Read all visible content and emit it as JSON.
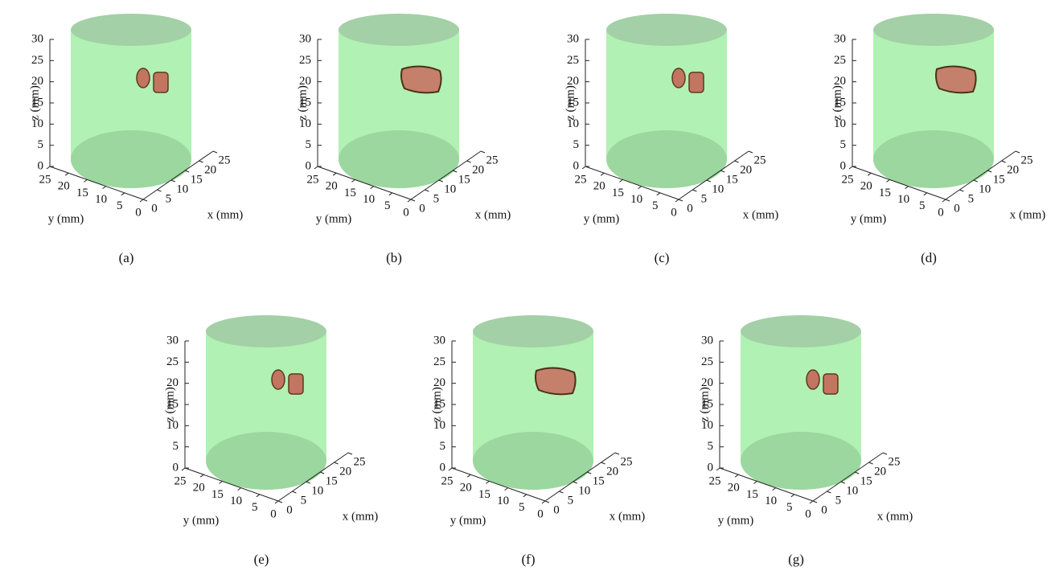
{
  "chart_data": [
    {
      "type": "surface3d",
      "caption": "(a)",
      "xlabel": "x (mm)",
      "ylabel": "y (mm)",
      "zlabel": "z (mm)",
      "xlim": [
        0,
        25
      ],
      "ylim": [
        0,
        25
      ],
      "zlim": [
        0,
        30
      ],
      "xticks": [
        0,
        5,
        10,
        15,
        20,
        25
      ],
      "yticks": [
        0,
        5,
        10,
        15,
        20,
        25
      ],
      "zticks": [
        0,
        5,
        10,
        15,
        20,
        25,
        30
      ]
    },
    {
      "type": "surface3d",
      "caption": "(b)",
      "xlabel": "x (mm)",
      "ylabel": "y (mm)",
      "zlabel": "z (mm)",
      "xlim": [
        0,
        25
      ],
      "ylim": [
        0,
        25
      ],
      "zlim": [
        0,
        30
      ],
      "xticks": [
        0,
        5,
        10,
        15,
        20,
        25
      ],
      "yticks": [
        0,
        5,
        10,
        15,
        20,
        25
      ],
      "zticks": [
        0,
        5,
        10,
        15,
        20,
        25,
        30
      ]
    },
    {
      "type": "surface3d",
      "caption": "(c)",
      "xlabel": "x (mm)",
      "ylabel": "y (mm)",
      "zlabel": "z (mm)",
      "xlim": [
        0,
        25
      ],
      "ylim": [
        0,
        25
      ],
      "zlim": [
        0,
        30
      ],
      "xticks": [
        0,
        5,
        10,
        15,
        20,
        25
      ],
      "yticks": [
        0,
        5,
        10,
        15,
        20,
        25
      ],
      "zticks": [
        0,
        5,
        10,
        15,
        20,
        25,
        30
      ]
    },
    {
      "type": "surface3d",
      "caption": "(d)",
      "xlabel": "x (mm)",
      "ylabel": "y (mm)",
      "zlabel": "z (mm)",
      "xlim": [
        0,
        25
      ],
      "ylim": [
        0,
        25
      ],
      "zlim": [
        0,
        30
      ],
      "xticks": [
        0,
        5,
        10,
        15,
        20,
        25
      ],
      "yticks": [
        0,
        5,
        10,
        15,
        20,
        25
      ],
      "zticks": [
        0,
        5,
        10,
        15,
        20,
        25,
        30
      ]
    },
    {
      "type": "surface3d",
      "caption": "(e)",
      "xlabel": "x (mm)",
      "ylabel": "y (mm)",
      "zlabel": "z (mm)",
      "xlim": [
        0,
        25
      ],
      "ylim": [
        0,
        25
      ],
      "zlim": [
        0,
        30
      ],
      "xticks": [
        0,
        5,
        10,
        15,
        20,
        25
      ],
      "yticks": [
        0,
        5,
        10,
        15,
        20,
        25
      ],
      "zticks": [
        0,
        5,
        10,
        15,
        20,
        25,
        30
      ]
    },
    {
      "type": "surface3d",
      "caption": "(f)",
      "xlabel": "x (mm)",
      "ylabel": "y (mm)",
      "zlabel": "z (mm)",
      "xlim": [
        0,
        25
      ],
      "ylim": [
        0,
        25
      ],
      "zlim": [
        0,
        30
      ],
      "xticks": [
        0,
        5,
        10,
        15,
        20,
        25
      ],
      "yticks": [
        0,
        5,
        10,
        15,
        20,
        25
      ],
      "zticks": [
        0,
        5,
        10,
        15,
        20,
        25,
        30
      ]
    },
    {
      "type": "surface3d",
      "caption": "(g)",
      "xlabel": "x (mm)",
      "ylabel": "y (mm)",
      "zlabel": "z (mm)",
      "xlim": [
        0,
        25
      ],
      "ylim": [
        0,
        25
      ],
      "zlim": [
        0,
        30
      ],
      "xticks": [
        0,
        5,
        10,
        15,
        20,
        25
      ],
      "yticks": [
        0,
        5,
        10,
        15,
        20,
        25
      ],
      "zticks": [
        0,
        5,
        10,
        15,
        20,
        25,
        30
      ]
    }
  ]
}
